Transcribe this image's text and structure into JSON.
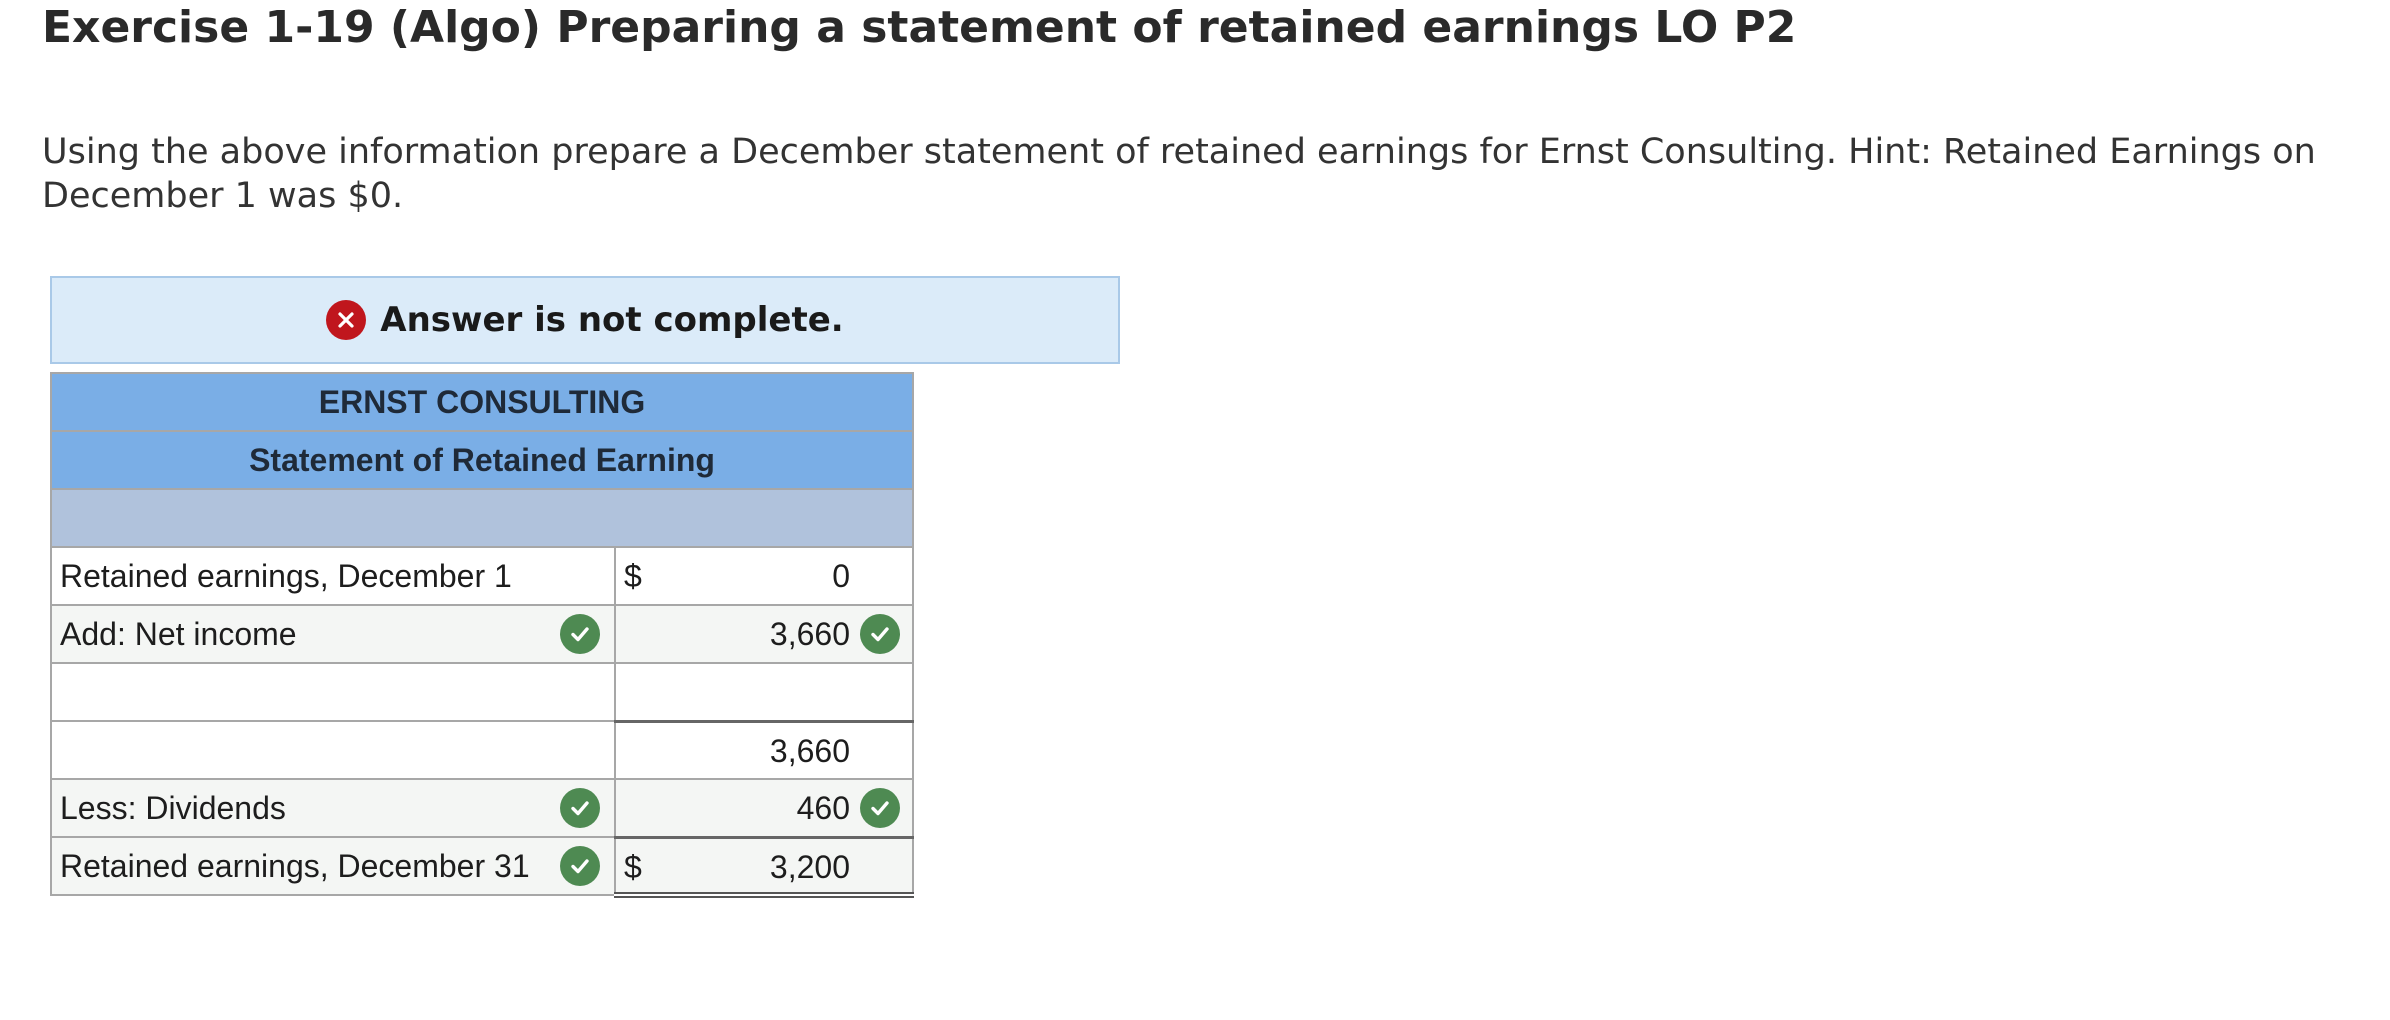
{
  "page": {
    "title": "Exercise 1-19 (Algo) Preparing a statement of retained earnings LO P2",
    "instructions": "Using the above information prepare a December statement of retained earnings for Ernst Consulting. Hint: Retained Earnings on December 1 was $0."
  },
  "banner": {
    "text": "Answer is not complete.",
    "icon": "x-circle-icon",
    "color": "#c0161d",
    "background": "#dbebf9"
  },
  "statement": {
    "company": "ERNST CONSULTING",
    "title": "Statement of Retained Earning",
    "header_color": "#7aaee6",
    "correct_color": "#4e8a52",
    "rows": [
      {
        "label": "Retained earnings, December 1",
        "dollar": "$",
        "amount": "0",
        "label_check": false,
        "amount_check": false
      },
      {
        "label": "Add: Net income",
        "dollar": "",
        "amount": "3,660",
        "label_check": true,
        "amount_check": true
      },
      {
        "label": "",
        "dollar": "",
        "amount": "",
        "label_check": false,
        "amount_check": false
      },
      {
        "label": "",
        "dollar": "",
        "amount": "3,660",
        "label_check": false,
        "amount_check": false
      },
      {
        "label": "Less: Dividends",
        "dollar": "",
        "amount": "460",
        "label_check": true,
        "amount_check": true
      },
      {
        "label": "Retained earnings, December 31",
        "dollar": "$",
        "amount": "3,200",
        "label_check": true,
        "amount_check": false
      }
    ]
  }
}
